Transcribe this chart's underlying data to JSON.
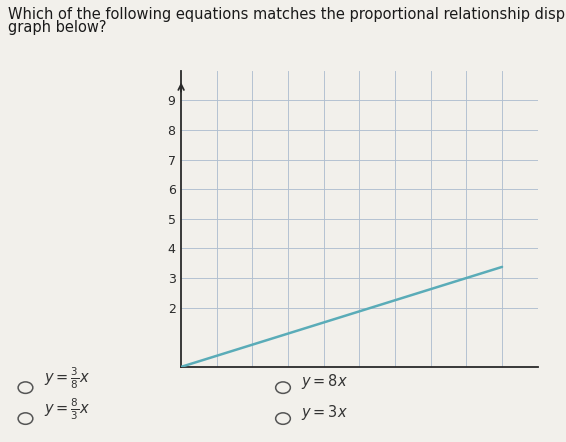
{
  "title_line1": "Which of the following equations matches the proportional relationship displayed on the",
  "title_line2": "graph below?",
  "title_fontsize": 10.5,
  "title_color": "#1a1a1a",
  "bg_color": "#f2f0eb",
  "grid_color": "#b0bfd0",
  "axis_color": "#2a2a2a",
  "line_color": "#5aacb8",
  "slope": 0.375,
  "line_x_start": 0,
  "line_x_end": 9,
  "ylim": [
    0,
    10.0
  ],
  "xlim": [
    0,
    10.0
  ],
  "yticks": [
    2,
    3,
    4,
    5,
    6,
    7,
    8,
    9
  ],
  "xticks": [
    1,
    2,
    3,
    4,
    5,
    6,
    7,
    8,
    9
  ],
  "choice_fontsize": 10.5,
  "choice_color": "#333333",
  "circle_color": "#555555"
}
